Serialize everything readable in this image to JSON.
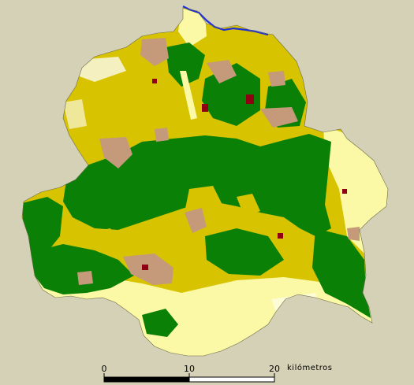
{
  "colors": {
    "background": "#d5d1b6",
    "forest": "#0b8006",
    "cropland": "#d8c300",
    "pale_grassland": "#fbf9a6",
    "brown_soil": "#c59a7a",
    "urban_red": "#8f0012",
    "river_blue": "#1f2fd6",
    "white_gaps": "#ffffff"
  },
  "scale_bar": {
    "ticks": [
      "0",
      "10",
      "20"
    ],
    "unit": "kilómetros"
  }
}
